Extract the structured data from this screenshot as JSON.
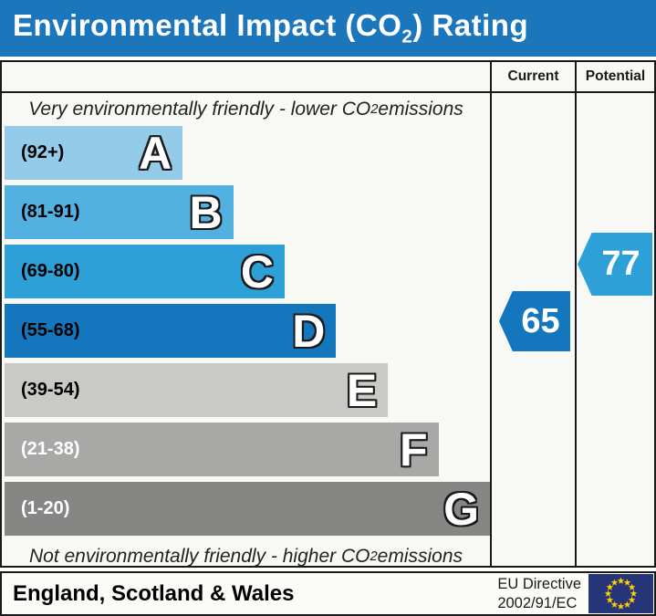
{
  "title": {
    "pre": "Environmental Impact (CO",
    "sub": "2",
    "post": ") Rating"
  },
  "header": {
    "current": "Current",
    "potential": "Potential"
  },
  "notes": {
    "top": {
      "pre": "Very environmentally friendly - lower CO",
      "sub": "2",
      "post": " emissions"
    },
    "bottom": {
      "pre": "Not environmentally friendly - higher CO",
      "sub": "2",
      "post": " emissions"
    }
  },
  "bands": [
    {
      "letter": "A",
      "range": "(92+)",
      "color": "#94cbe9",
      "text_color": "#000000",
      "width_pct": 36.7
    },
    {
      "letter": "B",
      "range": "(81-91)",
      "color": "#52b1e0",
      "text_color": "#000000",
      "width_pct": 47.1
    },
    {
      "letter": "C",
      "range": "(69-80)",
      "color": "#2da0d8",
      "text_color": "#000000",
      "width_pct": 57.7
    },
    {
      "letter": "D",
      "range": "(55-68)",
      "color": "#1477be",
      "text_color": "#000000",
      "width_pct": 68.3
    },
    {
      "letter": "E",
      "range": "(39-54)",
      "color": "#c9c9c6",
      "text_color": "#000000",
      "width_pct": 79.0
    },
    {
      "letter": "F",
      "range": "(21-38)",
      "color": "#a8a8a6",
      "text_color": "#ffffff",
      "width_pct": 89.4
    },
    {
      "letter": "G",
      "range": "(1-20)",
      "color": "#868684",
      "text_color": "#ffffff",
      "width_pct": 100
    }
  ],
  "current": {
    "value": "65",
    "band": "D",
    "color": "#1477be"
  },
  "potential": {
    "value": "77",
    "band": "C",
    "color": "#2da0d8"
  },
  "footer": {
    "region": "England, Scotland & Wales",
    "directive_line1": "EU Directive",
    "directive_line2": "2002/91/EC"
  },
  "flag": {
    "bg": "#253577",
    "star": "#ffcc00"
  },
  "colors": {
    "title_bar": "#1b76bc",
    "border": "#1a1a1a"
  },
  "chart_data": {
    "type": "bar",
    "title": "Environmental Impact (CO2) Rating",
    "categories": [
      "A",
      "B",
      "C",
      "D",
      "E",
      "F",
      "G"
    ],
    "ranges": [
      "92+",
      "81-91",
      "69-80",
      "55-68",
      "39-54",
      "21-38",
      "1-20"
    ],
    "bar_lengths_pct": [
      36.7,
      47.1,
      57.7,
      68.3,
      79.0,
      89.4,
      100
    ],
    "bar_colors": [
      "#94cbe9",
      "#52b1e0",
      "#2da0d8",
      "#1477be",
      "#c9c9c6",
      "#a8a8a6",
      "#868684"
    ],
    "series": [
      {
        "name": "Current",
        "value": 65,
        "band": "D"
      },
      {
        "name": "Potential",
        "value": 77,
        "band": "C"
      }
    ],
    "top_annotation": "Very environmentally friendly - lower CO2 emissions",
    "bottom_annotation": "Not environmentally friendly - higher CO2 emissions",
    "footer": "England, Scotland & Wales | EU Directive 2002/91/EC"
  }
}
